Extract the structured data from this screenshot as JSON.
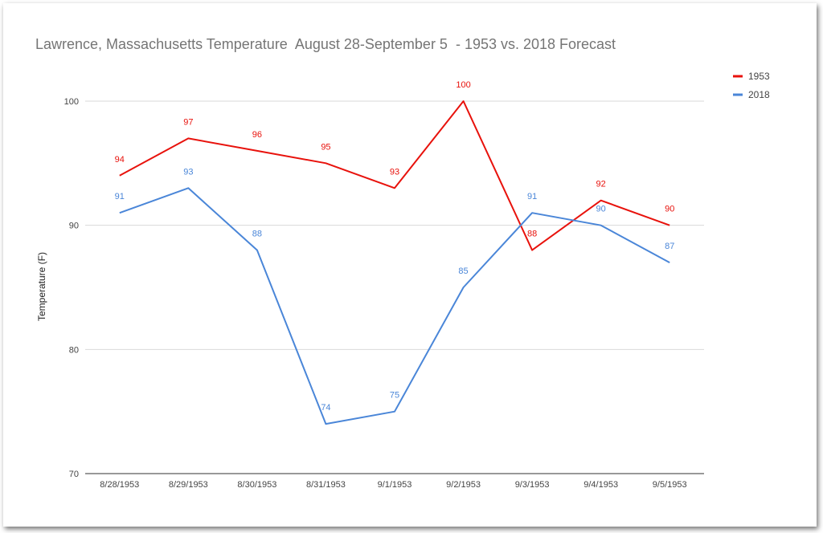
{
  "chart_data": {
    "type": "line",
    "title": "Lawrence, Massachusetts Temperature  August 28-September 5  - 1953 vs. 2018 Forecast",
    "xlabel": "",
    "ylabel": "Temperature (F)",
    "categories": [
      "8/28/1953",
      "8/29/1953",
      "8/30/1953",
      "8/31/1953",
      "9/1/1953",
      "9/2/1953",
      "9/3/1953",
      "9/4/1953",
      "9/5/1953"
    ],
    "series": [
      {
        "name": "1953",
        "color": "#e8120c",
        "values": [
          94,
          97,
          96,
          95,
          93,
          100,
          88,
          92,
          90
        ]
      },
      {
        "name": "2018",
        "color": "#4a86d8",
        "values": [
          91,
          93,
          88,
          74,
          75,
          85,
          91,
          90,
          87
        ]
      }
    ],
    "ylim": [
      70,
      100
    ],
    "yticks": [
      70,
      80,
      90,
      100
    ],
    "grid": true,
    "legend": "top-right",
    "data_labels": true
  }
}
